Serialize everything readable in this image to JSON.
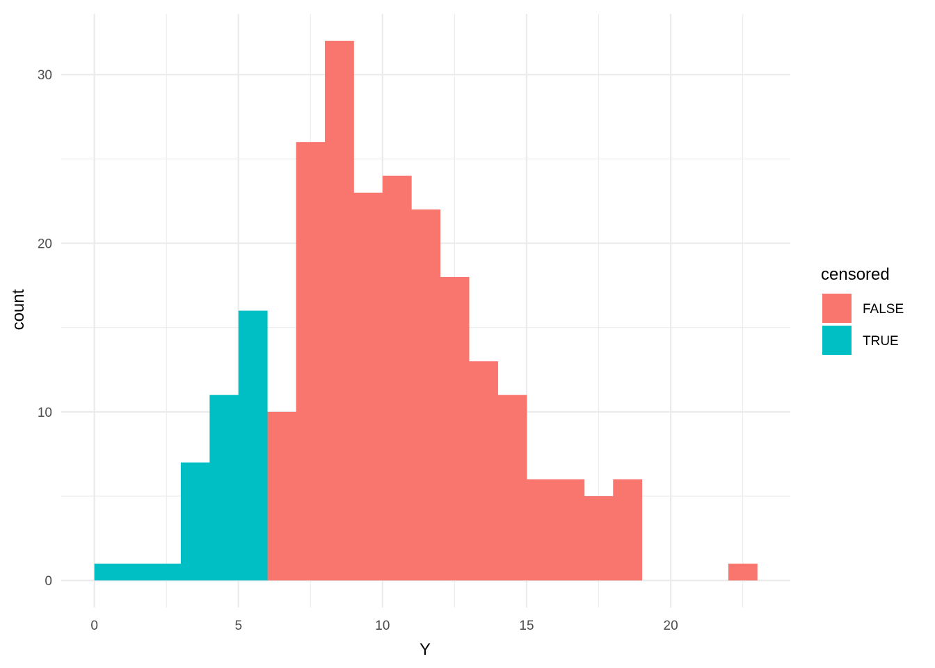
{
  "chart_data": {
    "type": "bar",
    "subtype": "stacked-histogram",
    "binwidth": 1,
    "xlabel": "Y",
    "ylabel": "count",
    "xlim": [
      -1.15,
      24.15
    ],
    "ylim": [
      -1.6,
      33.6
    ],
    "x_ticks": [
      0,
      5,
      10,
      15,
      20
    ],
    "y_ticks": [
      0,
      10,
      20,
      30
    ],
    "grid": true,
    "legend": {
      "title": "censored",
      "placement": "right"
    },
    "series": [
      {
        "name": "FALSE",
        "color": "#F8766D",
        "bins": [
          {
            "x0": 6,
            "x1": 7,
            "count": 10
          },
          {
            "x0": 7,
            "x1": 8,
            "count": 26
          },
          {
            "x0": 8,
            "x1": 9,
            "count": 32
          },
          {
            "x0": 9,
            "x1": 10,
            "count": 23
          },
          {
            "x0": 10,
            "x1": 11,
            "count": 24
          },
          {
            "x0": 11,
            "x1": 12,
            "count": 22
          },
          {
            "x0": 12,
            "x1": 13,
            "count": 18
          },
          {
            "x0": 13,
            "x1": 14,
            "count": 13
          },
          {
            "x0": 14,
            "x1": 15,
            "count": 11
          },
          {
            "x0": 15,
            "x1": 16,
            "count": 6
          },
          {
            "x0": 16,
            "x1": 17,
            "count": 6
          },
          {
            "x0": 17,
            "x1": 18,
            "count": 5
          },
          {
            "x0": 18,
            "x1": 19,
            "count": 6
          },
          {
            "x0": 22,
            "x1": 23,
            "count": 1
          }
        ]
      },
      {
        "name": "TRUE",
        "color": "#00BFC4",
        "bins": [
          {
            "x0": 0,
            "x1": 1,
            "count": 1
          },
          {
            "x0": 1,
            "x1": 2,
            "count": 1
          },
          {
            "x0": 2,
            "x1": 3,
            "count": 1
          },
          {
            "x0": 3,
            "x1": 4,
            "count": 7
          },
          {
            "x0": 4,
            "x1": 5,
            "count": 11
          },
          {
            "x0": 5,
            "x1": 6,
            "count": 16
          }
        ]
      }
    ]
  }
}
